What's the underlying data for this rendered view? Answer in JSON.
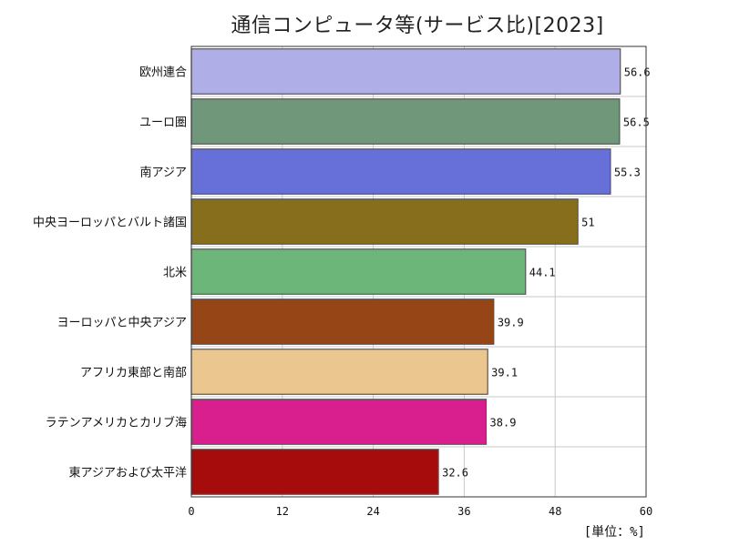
{
  "chart_data": {
    "type": "bar",
    "orientation": "horizontal",
    "title": "通信コンピュータ等(サービス比)[2023]",
    "unit_label": "[単位：%]",
    "xlim": [
      0,
      60
    ],
    "xticks": [
      "0",
      "12",
      "24",
      "36",
      "48",
      "60"
    ],
    "grid": true,
    "categories": [
      "欧州連合",
      "ユーロ圏",
      "南アジア",
      "中央ヨーロッパとバルト諸国",
      "北米",
      "ヨーロッパと中央アジア",
      "アフリカ東部と南部",
      "ラテンアメリカとカリブ海",
      "東アジアおよび太平洋"
    ],
    "values": [
      56.6,
      56.5,
      55.3,
      51,
      44.1,
      39.9,
      39.1,
      38.9,
      32.6
    ],
    "value_labels": [
      "56.6",
      "56.5",
      "55.3",
      "51",
      "44.1",
      "39.9",
      "39.1",
      "38.9",
      "32.6"
    ],
    "colors": [
      "#b0aee6",
      "#70977a",
      "#6670d8",
      "#876e1c",
      "#6db67a",
      "#954516",
      "#ecc68f",
      "#d81f8d",
      "#a60c0c"
    ]
  }
}
